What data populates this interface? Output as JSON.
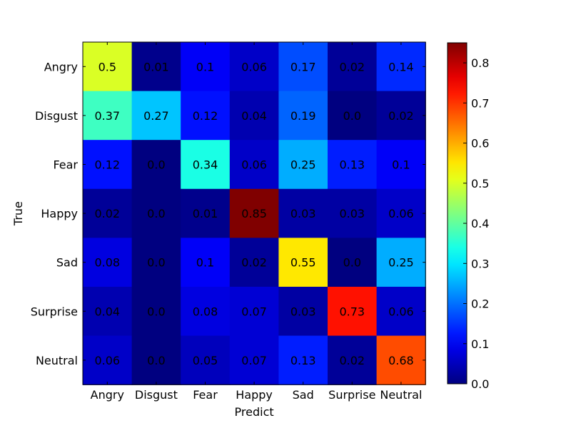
{
  "chart_data": {
    "type": "heatmap",
    "title": "",
    "xlabel": "Predict",
    "ylabel": "True",
    "x_categories": [
      "Angry",
      "Disgust",
      "Fear",
      "Happy",
      "Sad",
      "Surprise",
      "Neutral"
    ],
    "y_categories": [
      "Angry",
      "Disgust",
      "Fear",
      "Happy",
      "Sad",
      "Surprise",
      "Neutral"
    ],
    "values": [
      [
        0.5,
        0.01,
        0.1,
        0.06,
        0.17,
        0.02,
        0.14
      ],
      [
        0.37,
        0.27,
        0.12,
        0.04,
        0.19,
        0.0,
        0.02
      ],
      [
        0.12,
        0.0,
        0.34,
        0.06,
        0.25,
        0.13,
        0.1
      ],
      [
        0.02,
        0.0,
        0.01,
        0.85,
        0.03,
        0.03,
        0.06
      ],
      [
        0.08,
        0.0,
        0.1,
        0.02,
        0.55,
        0.0,
        0.25
      ],
      [
        0.04,
        0.0,
        0.08,
        0.07,
        0.03,
        0.73,
        0.06
      ],
      [
        0.06,
        0.0,
        0.05,
        0.07,
        0.13,
        0.02,
        0.68
      ]
    ],
    "cell_labels": [
      [
        "0.5",
        "0.01",
        "0.1",
        "0.06",
        "0.17",
        "0.02",
        "0.14"
      ],
      [
        "0.37",
        "0.27",
        "0.12",
        "0.04",
        "0.19",
        "0.0",
        "0.02"
      ],
      [
        "0.12",
        "0.0",
        "0.34",
        "0.06",
        "0.25",
        "0.13",
        "0.1"
      ],
      [
        "0.02",
        "0.0",
        "0.01",
        "0.85",
        "0.03",
        "0.03",
        "0.06"
      ],
      [
        "0.08",
        "0.0",
        "0.1",
        "0.02",
        "0.55",
        "0.0",
        "0.25"
      ],
      [
        "0.04",
        "0.0",
        "0.08",
        "0.07",
        "0.03",
        "0.73",
        "0.06"
      ],
      [
        "0.06",
        "0.0",
        "0.05",
        "0.07",
        "0.13",
        "0.02",
        "0.68"
      ]
    ],
    "colorbar": {
      "colormap": "jet",
      "range": [
        0.0,
        0.85
      ],
      "ticks": [
        0.0,
        0.1,
        0.2,
        0.3,
        0.4,
        0.5,
        0.6,
        0.7,
        0.8
      ],
      "tick_labels": [
        "0.0",
        "0.1",
        "0.2",
        "0.3",
        "0.4",
        "0.5",
        "0.6",
        "0.7",
        "0.8"
      ]
    },
    "grid": false
  }
}
